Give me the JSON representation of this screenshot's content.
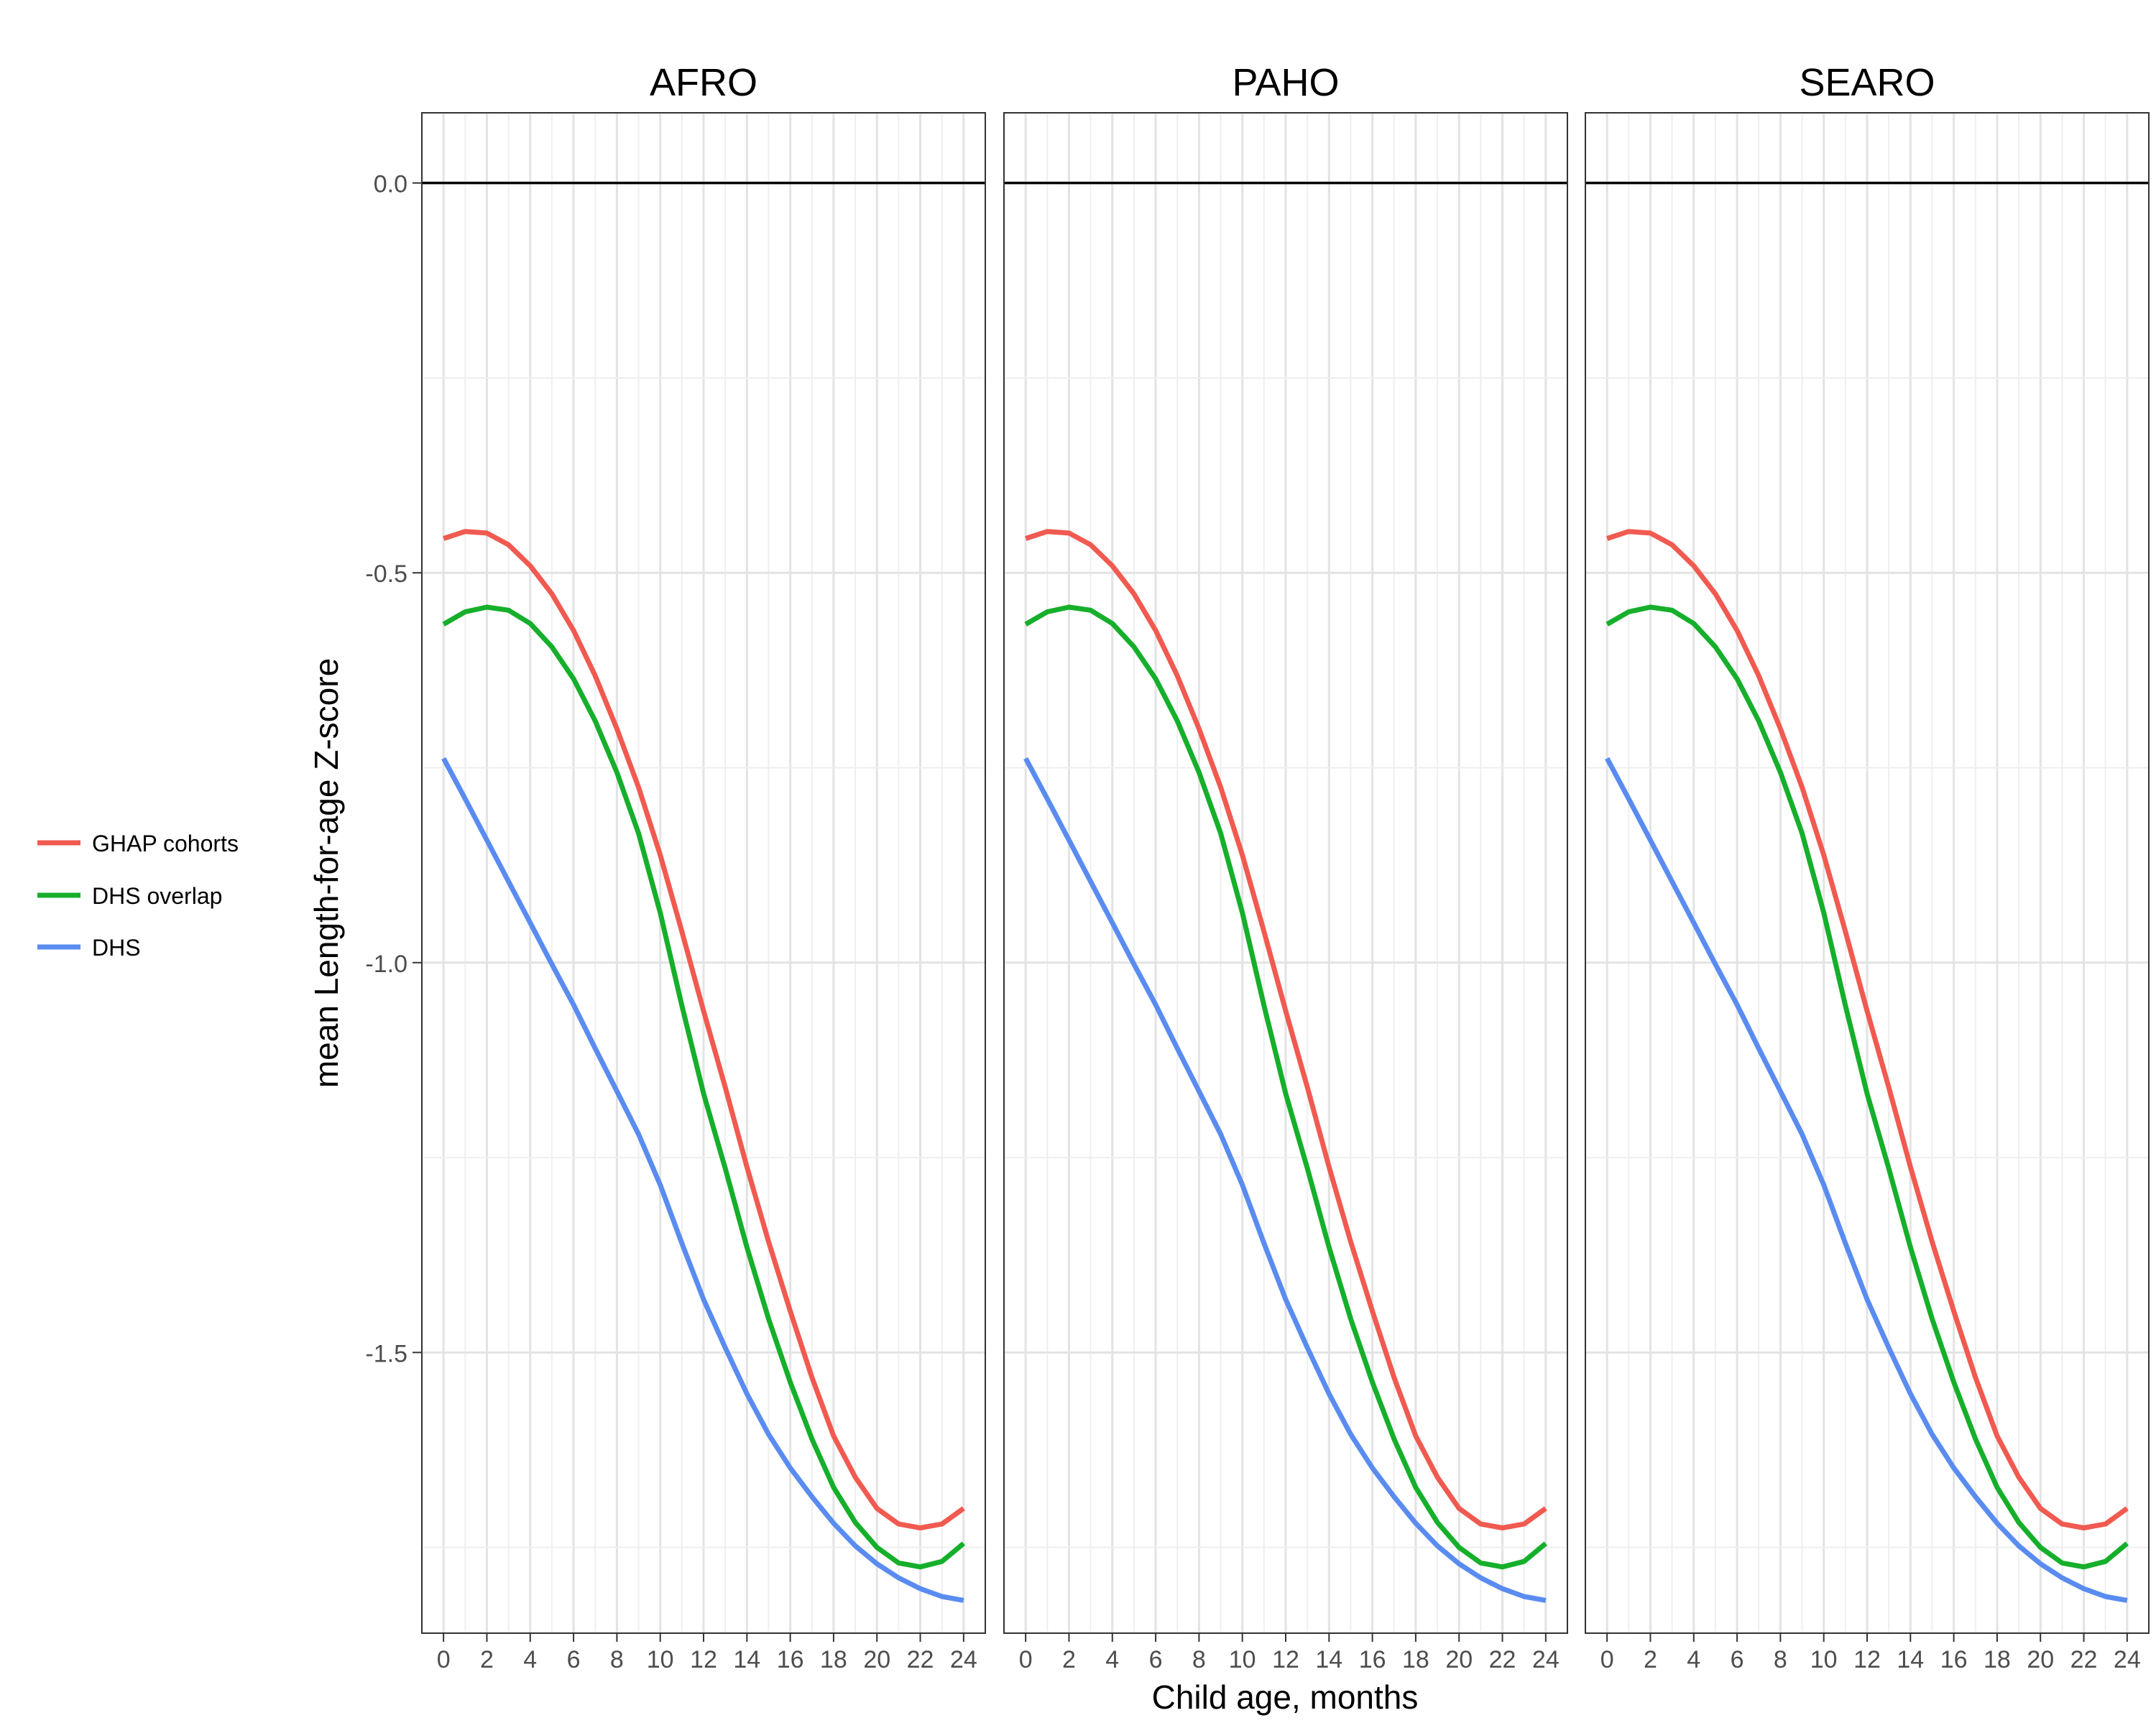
{
  "chart_data": {
    "type": "line",
    "xlabel": "Child age, months",
    "ylabel": "mean Length-for-age Z-score",
    "xlim": [
      -1,
      25
    ],
    "ylim": [
      -1.86,
      0.09
    ],
    "x_ticks": [
      0,
      2,
      4,
      6,
      8,
      10,
      12,
      14,
      16,
      18,
      20,
      22,
      24
    ],
    "x_tick_labels": [
      "0",
      "2",
      "4",
      "6",
      "8",
      "10",
      "12",
      "14",
      "16",
      "18",
      "20",
      "22",
      "24"
    ],
    "y_ticks": [
      0.0,
      -0.5,
      -1.0,
      -1.5
    ],
    "y_tick_labels": [
      "0.0",
      "-0.5",
      "-1.0",
      "-1.5"
    ],
    "reference_line_y": 0,
    "grid": true,
    "legend_position": "left",
    "legend": [
      {
        "label": "GHAP cohorts",
        "color": "#F05A50"
      },
      {
        "label": "DHS overlap",
        "color": "#16AF2B"
      },
      {
        "label": "DHS",
        "color": "#5A8CF0"
      }
    ],
    "x": [
      0,
      1,
      2,
      3,
      4,
      5,
      6,
      7,
      8,
      9,
      10,
      11,
      12,
      13,
      14,
      15,
      16,
      17,
      18,
      19,
      20,
      21,
      22,
      23,
      24
    ],
    "panels": [
      {
        "title": "AFRO",
        "series": [
          {
            "name": "GHAP cohorts",
            "color": "#F05A50",
            "values": [
              -0.456,
              -0.447,
              -0.449,
              -0.464,
              -0.491,
              -0.527,
              -0.574,
              -0.632,
              -0.7,
              -0.775,
              -0.862,
              -0.96,
              -1.062,
              -1.16,
              -1.262,
              -1.358,
              -1.447,
              -1.532,
              -1.607,
              -1.66,
              -1.7,
              -1.72,
              -1.725,
              -1.72,
              -1.7
            ]
          },
          {
            "name": "DHS overlap",
            "color": "#16AF2B",
            "values": [
              -0.566,
              -0.55,
              -0.544,
              -0.548,
              -0.565,
              -0.595,
              -0.636,
              -0.69,
              -0.756,
              -0.834,
              -0.936,
              -1.055,
              -1.168,
              -1.264,
              -1.365,
              -1.457,
              -1.538,
              -1.611,
              -1.673,
              -1.718,
              -1.75,
              -1.77,
              -1.775,
              -1.768,
              -1.745
            ]
          },
          {
            "name": "DHS",
            "color": "#5A8CF0",
            "values": [
              -0.738,
              -0.79,
              -0.843,
              -0.896,
              -0.949,
              -1.002,
              -1.054,
              -1.11,
              -1.165,
              -1.22,
              -1.285,
              -1.36,
              -1.432,
              -1.494,
              -1.553,
              -1.605,
              -1.648,
              -1.685,
              -1.719,
              -1.748,
              -1.771,
              -1.789,
              -1.803,
              -1.813,
              -1.818
            ]
          }
        ]
      },
      {
        "title": "PAHO",
        "series": [
          {
            "name": "GHAP cohorts",
            "color": "#F05A50",
            "values": [
              -0.456,
              -0.447,
              -0.449,
              -0.464,
              -0.491,
              -0.527,
              -0.574,
              -0.632,
              -0.7,
              -0.775,
              -0.862,
              -0.96,
              -1.062,
              -1.16,
              -1.262,
              -1.358,
              -1.447,
              -1.532,
              -1.607,
              -1.66,
              -1.7,
              -1.72,
              -1.725,
              -1.72,
              -1.7
            ]
          },
          {
            "name": "DHS overlap",
            "color": "#16AF2B",
            "values": [
              -0.566,
              -0.55,
              -0.544,
              -0.548,
              -0.565,
              -0.595,
              -0.636,
              -0.69,
              -0.756,
              -0.834,
              -0.936,
              -1.055,
              -1.168,
              -1.264,
              -1.365,
              -1.457,
              -1.538,
              -1.611,
              -1.673,
              -1.718,
              -1.75,
              -1.77,
              -1.775,
              -1.768,
              -1.745
            ]
          },
          {
            "name": "DHS",
            "color": "#5A8CF0",
            "values": [
              -0.738,
              -0.79,
              -0.843,
              -0.896,
              -0.949,
              -1.002,
              -1.054,
              -1.11,
              -1.165,
              -1.22,
              -1.285,
              -1.36,
              -1.432,
              -1.494,
              -1.553,
              -1.605,
              -1.648,
              -1.685,
              -1.719,
              -1.748,
              -1.771,
              -1.789,
              -1.803,
              -1.813,
              -1.818
            ]
          }
        ]
      },
      {
        "title": "SEARO",
        "series": [
          {
            "name": "GHAP cohorts",
            "color": "#F05A50",
            "values": [
              -0.456,
              -0.447,
              -0.449,
              -0.464,
              -0.491,
              -0.527,
              -0.574,
              -0.632,
              -0.7,
              -0.775,
              -0.862,
              -0.96,
              -1.062,
              -1.16,
              -1.262,
              -1.358,
              -1.447,
              -1.532,
              -1.607,
              -1.66,
              -1.7,
              -1.72,
              -1.725,
              -1.72,
              -1.7
            ]
          },
          {
            "name": "DHS overlap",
            "color": "#16AF2B",
            "values": [
              -0.566,
              -0.55,
              -0.544,
              -0.548,
              -0.565,
              -0.595,
              -0.636,
              -0.69,
              -0.756,
              -0.834,
              -0.936,
              -1.055,
              -1.168,
              -1.264,
              -1.365,
              -1.457,
              -1.538,
              -1.611,
              -1.673,
              -1.718,
              -1.75,
              -1.77,
              -1.775,
              -1.768,
              -1.745
            ]
          },
          {
            "name": "DHS",
            "color": "#5A8CF0",
            "values": [
              -0.738,
              -0.79,
              -0.843,
              -0.896,
              -0.949,
              -1.002,
              -1.054,
              -1.11,
              -1.165,
              -1.22,
              -1.285,
              -1.36,
              -1.432,
              -1.494,
              -1.553,
              -1.605,
              -1.648,
              -1.685,
              -1.719,
              -1.748,
              -1.771,
              -1.789,
              -1.803,
              -1.813,
              -1.818
            ]
          }
        ]
      }
    ]
  }
}
